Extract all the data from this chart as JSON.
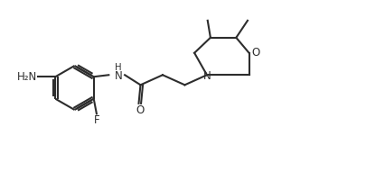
{
  "background_color": "#ffffff",
  "line_color": "#2d2d2d",
  "line_width": 1.5,
  "font_size": 8.5,
  "figsize": [
    4.06,
    1.91
  ],
  "dpi": 100,
  "xlim": [
    0,
    10.2
  ],
  "ylim": [
    0,
    4.8
  ]
}
